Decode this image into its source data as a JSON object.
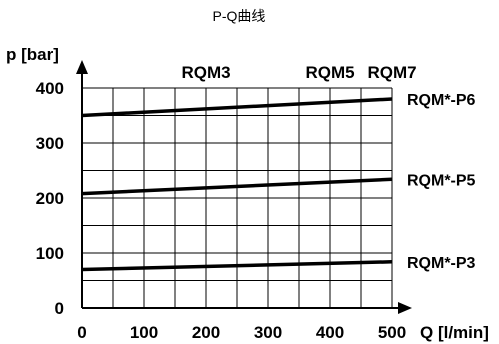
{
  "chart_data": {
    "type": "line",
    "title": "P-Q曲线",
    "xlabel": "Q [l/min]",
    "ylabel": "p [bar]",
    "xlim": [
      0,
      500
    ],
    "ylim": [
      0,
      400
    ],
    "x_ticks": [
      "0",
      "100",
      "200",
      "300",
      "400",
      "500"
    ],
    "y_ticks": [
      "0",
      "100",
      "200",
      "300",
      "400"
    ],
    "grid": true,
    "size_markers": [
      {
        "label": "RQM3",
        "x": 200
      },
      {
        "label": "RQM5",
        "x": 400
      },
      {
        "label": "RQM7",
        "x": 500
      }
    ],
    "series": [
      {
        "name": "RQM*-P6",
        "x": [
          0,
          500
        ],
        "values": [
          350,
          380
        ]
      },
      {
        "name": "RQM*-P5",
        "x": [
          0,
          500
        ],
        "values": [
          208,
          234
        ]
      },
      {
        "name": "RQM*-P3",
        "x": [
          0,
          500
        ],
        "values": [
          70,
          84
        ]
      }
    ]
  }
}
